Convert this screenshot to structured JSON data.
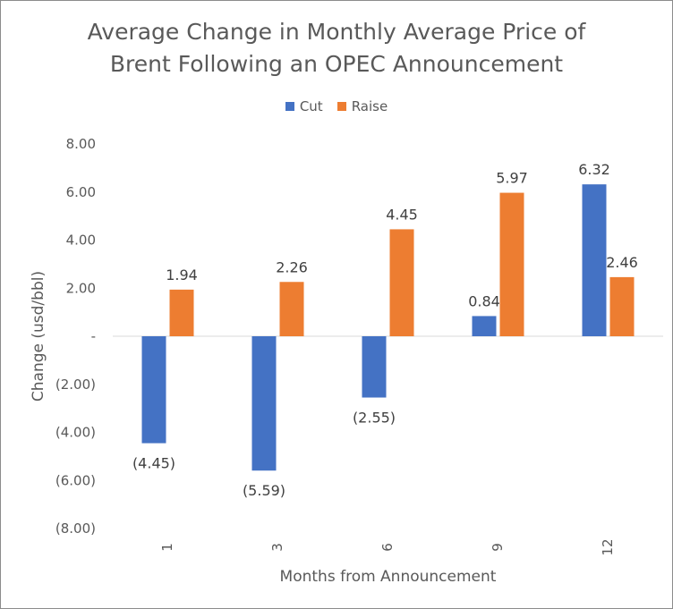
{
  "chart_data": {
    "type": "bar",
    "title_lines": [
      "Average Change in Monthly Average Price of",
      "Brent Following an OPEC Announcement"
    ],
    "xlabel": "Months from Announcement",
    "ylabel": "Change (usd/bbl)",
    "categories": [
      "1",
      "3",
      "6",
      "9",
      "12"
    ],
    "series": [
      {
        "name": "Cut",
        "color": "#4472c4",
        "values": [
          -4.45,
          -5.59,
          -2.55,
          0.84,
          6.32
        ],
        "labels": [
          "(4.45)",
          "(5.59)",
          "(2.55)",
          "0.84",
          "6.32"
        ]
      },
      {
        "name": "Raise",
        "color": "#ed7d31",
        "values": [
          1.94,
          2.26,
          4.45,
          5.97,
          2.46
        ],
        "labels": [
          "1.94",
          "2.26",
          "4.45",
          "5.97",
          "2.46"
        ]
      }
    ],
    "ylim": [
      -8,
      8
    ],
    "yticks": [
      8,
      6,
      4,
      2,
      0,
      -2,
      -4,
      -6,
      -8
    ],
    "ytick_labels": [
      "8.00",
      "6.00",
      "4.00",
      "2.00",
      "-",
      "(2.00)",
      "(4.00)",
      "(6.00)",
      "(8.00)"
    ],
    "grid": false,
    "legend_position": "top"
  }
}
